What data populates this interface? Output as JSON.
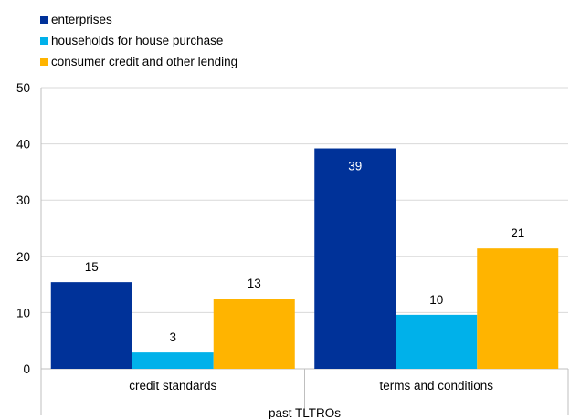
{
  "chart_data": {
    "type": "bar",
    "categories": [
      "credit standards",
      "terms and conditions"
    ],
    "group_label": "past TLTROs",
    "series": [
      {
        "name": "enterprises",
        "color": "#003299",
        "values": [
          15.4,
          39.2
        ],
        "labels": [
          "15",
          "39"
        ],
        "label_inside": [
          false,
          true
        ]
      },
      {
        "name": "households for house purchase",
        "color": "#00B1EA",
        "values": [
          2.9,
          9.6
        ],
        "labels": [
          "3",
          "10"
        ],
        "label_inside": [
          false,
          false
        ]
      },
      {
        "name": "consumer credit and other lending",
        "color": "#FFB400",
        "values": [
          12.5,
          21.4
        ],
        "labels": [
          "13",
          "21"
        ],
        "label_inside": [
          false,
          false
        ]
      }
    ],
    "ylim": [
      0,
      50
    ],
    "yticks": [
      0,
      10,
      20,
      30,
      40,
      50
    ],
    "grid": true,
    "legend_position": "top-left",
    "title": "",
    "xlabel": "",
    "ylabel": ""
  }
}
